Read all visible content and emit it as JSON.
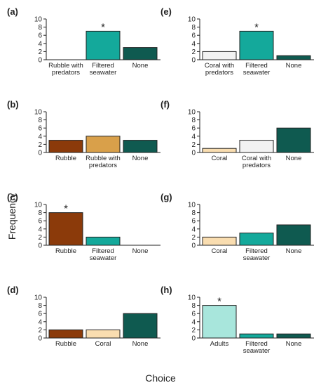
{
  "figure": {
    "y_axis_label": "Frequency",
    "x_axis_label": "Choice",
    "colors": {
      "dark_teal": "#0f5a50",
      "teal": "#14a99b",
      "brown": "#8b3a0a",
      "tan": "#d9a04a",
      "light_gray": "#f2f2f2",
      "cream": "#f9ddb0",
      "light_aqua": "#a8e6dc",
      "axis": "#222222"
    }
  },
  "chart_data": [
    {
      "panel": "(a)",
      "type": "bar",
      "ylim": [
        0,
        10
      ],
      "yticks": [
        0,
        2,
        4,
        6,
        8,
        10
      ],
      "categories": [
        "Rubble with\npredators",
        "Filtered\nseawater",
        "None"
      ],
      "values": [
        0,
        7,
        3
      ],
      "colors": [
        "#8b3a0a",
        "#14a99b",
        "#0f5a50"
      ],
      "significant": [
        false,
        true,
        false
      ],
      "significance_marker": "*"
    },
    {
      "panel": "(b)",
      "type": "bar",
      "ylim": [
        0,
        10
      ],
      "yticks": [
        0,
        2,
        4,
        6,
        8,
        10
      ],
      "categories": [
        "Rubble",
        "Rubble with\npredators",
        "None"
      ],
      "values": [
        3,
        4,
        3
      ],
      "colors": [
        "#8b3a0a",
        "#d9a04a",
        "#0f5a50"
      ],
      "significant": [
        false,
        false,
        false
      ],
      "significance_marker": "*"
    },
    {
      "panel": "(c)",
      "type": "bar",
      "ylim": [
        0,
        10
      ],
      "yticks": [
        0,
        2,
        4,
        6,
        8,
        10
      ],
      "categories": [
        "Rubble",
        "Filtered\nseawater",
        "None"
      ],
      "values": [
        8,
        2,
        0
      ],
      "colors": [
        "#8b3a0a",
        "#14a99b",
        "#0f5a50"
      ],
      "significant": [
        true,
        false,
        false
      ],
      "significance_marker": "*"
    },
    {
      "panel": "(d)",
      "type": "bar",
      "ylim": [
        0,
        10
      ],
      "yticks": [
        0,
        2,
        4,
        6,
        8,
        10
      ],
      "categories": [
        "Rubble",
        "Coral",
        "None"
      ],
      "values": [
        2,
        2,
        6
      ],
      "colors": [
        "#8b3a0a",
        "#f9ddb0",
        "#0f5a50"
      ],
      "significant": [
        false,
        false,
        false
      ],
      "significance_marker": "*"
    },
    {
      "panel": "(e)",
      "type": "bar",
      "ylim": [
        0,
        10
      ],
      "yticks": [
        0,
        2,
        4,
        6,
        8,
        10
      ],
      "categories": [
        "Coral with\npredators",
        "Filtered\nseawater",
        "None"
      ],
      "values": [
        2,
        7,
        1
      ],
      "colors": [
        "#f2f2f2",
        "#14a99b",
        "#0f5a50"
      ],
      "significant": [
        false,
        true,
        false
      ],
      "significance_marker": "*"
    },
    {
      "panel": "(f)",
      "type": "bar",
      "ylim": [
        0,
        10
      ],
      "yticks": [
        0,
        2,
        4,
        6,
        8,
        10
      ],
      "categories": [
        "Coral",
        "Coral with\npredators",
        "None"
      ],
      "values": [
        1,
        3,
        6
      ],
      "colors": [
        "#f9ddb0",
        "#f2f2f2",
        "#0f5a50"
      ],
      "significant": [
        false,
        false,
        false
      ],
      "significance_marker": "*"
    },
    {
      "panel": "(g)",
      "type": "bar",
      "ylim": [
        0,
        10
      ],
      "yticks": [
        0,
        2,
        4,
        6,
        8,
        10
      ],
      "categories": [
        "Coral",
        "Filtered\nseawater",
        "None"
      ],
      "values": [
        2,
        3,
        5
      ],
      "colors": [
        "#f9ddb0",
        "#14a99b",
        "#0f5a50"
      ],
      "significant": [
        false,
        false,
        false
      ],
      "significance_marker": "*"
    },
    {
      "panel": "(h)",
      "type": "bar",
      "ylim": [
        0,
        10
      ],
      "yticks": [
        0,
        2,
        4,
        6,
        8,
        10
      ],
      "categories": [
        "Adults",
        "Filtered\nseawater",
        "None"
      ],
      "values": [
        8,
        1,
        1
      ],
      "colors": [
        "#a8e6dc",
        "#14a99b",
        "#0f5a50"
      ],
      "significant": [
        true,
        false,
        false
      ],
      "significance_marker": "*"
    }
  ]
}
